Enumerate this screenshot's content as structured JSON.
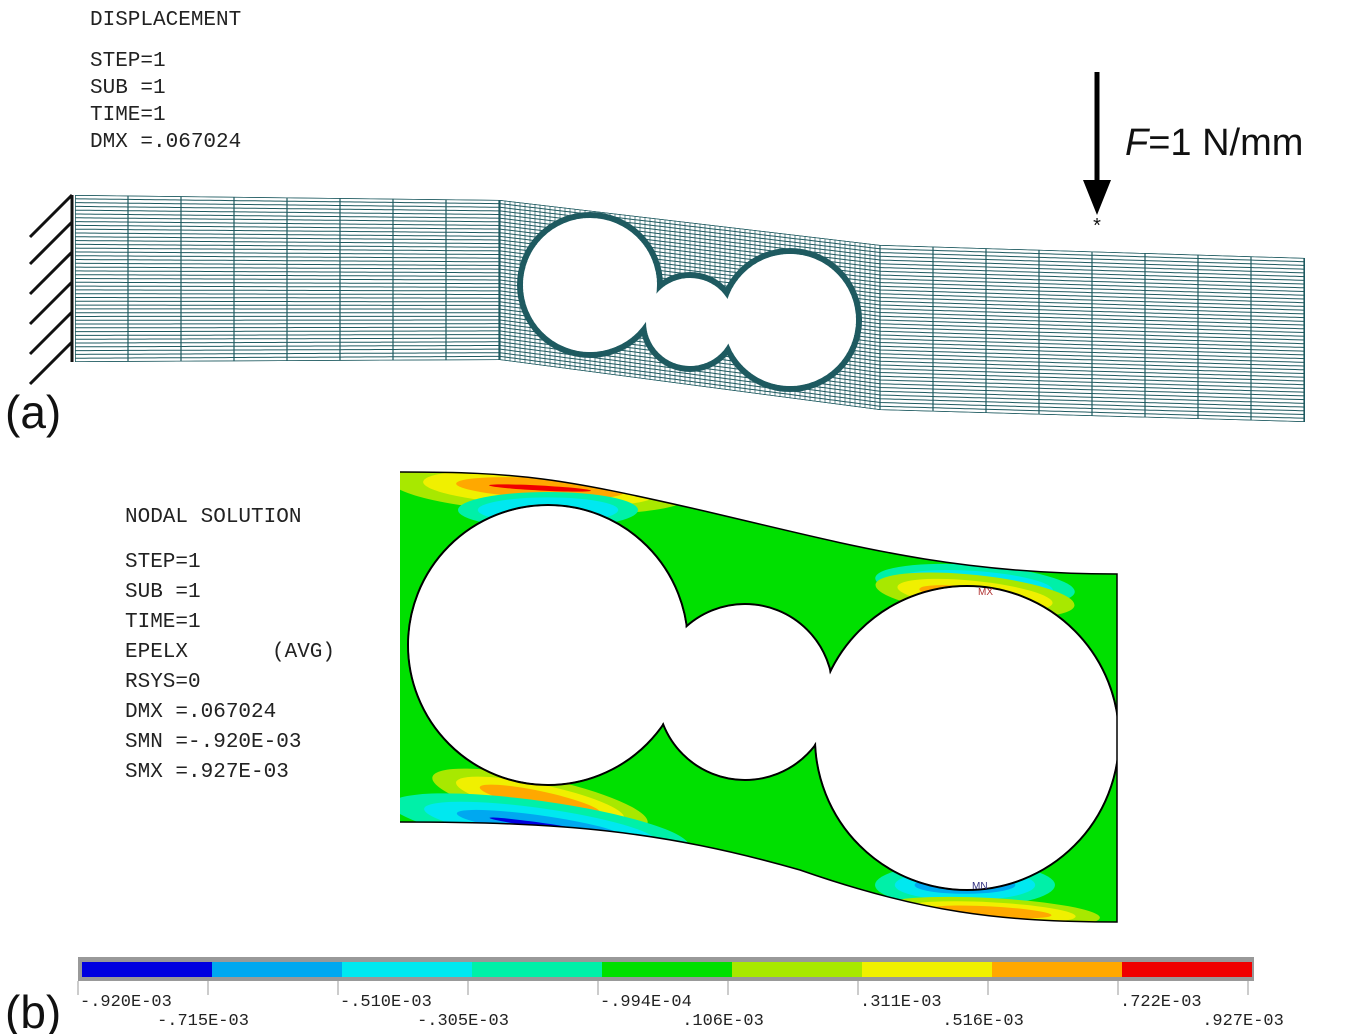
{
  "panel_a": {
    "label": "(a)",
    "header": "DISPLACEMENT",
    "info": [
      "STEP=1",
      "SUB =1",
      "TIME=1",
      "DMX =.067024"
    ],
    "load": {
      "symbol": "F",
      "text": "=1 N/mm"
    }
  },
  "panel_b": {
    "label": "(b)",
    "header": "NODAL SOLUTION",
    "info": [
      "STEP=1",
      "SUB =1",
      "TIME=1",
      "EPELX",
      "(AVG)",
      "RSYS=0",
      "DMX =.067024",
      "SMN =-.920E-03",
      "SMX =.927E-03"
    ],
    "markers": [
      "MX",
      "MN"
    ],
    "legend": {
      "colors": [
        "#0000e0",
        "#00a8f0",
        "#00e8f0",
        "#00f0a8",
        "#00e000",
        "#a8e800",
        "#f0f000",
        "#ffa800",
        "#f00000"
      ],
      "labels": [
        "-.920E-03",
        "-.715E-03",
        "-.510E-03",
        "-.305E-03",
        "-.994E-04",
        ".106E-03",
        ".311E-03",
        ".516E-03",
        ".722E-03",
        ".927E-03"
      ]
    }
  }
}
